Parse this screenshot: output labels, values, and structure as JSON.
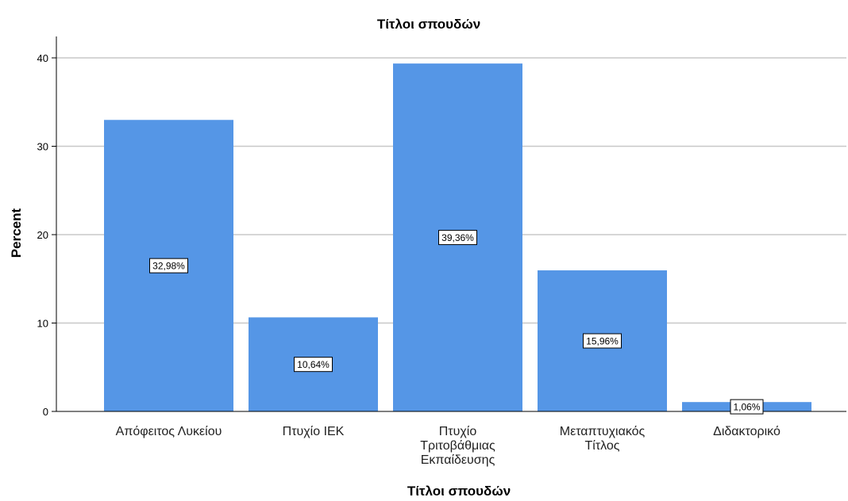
{
  "chart_data": {
    "type": "bar",
    "title": "Τίτλοι σπουδών",
    "xlabel": "Τίτλοι σπουδών",
    "ylabel": "Percent",
    "ylim": [
      0,
      40
    ],
    "yticks": [
      "0",
      "10",
      "20",
      "30",
      "40"
    ],
    "categories": [
      [
        "Απόφειτος Λυκείου"
      ],
      [
        "Πτυχίο ΙΕΚ"
      ],
      [
        "Πτυχίο",
        "Τριτοβάθμιας",
        "Εκπαίδευσης"
      ],
      [
        "Μεταπτυχιακός",
        "Τίτλος"
      ],
      [
        "Διδακτορικό"
      ]
    ],
    "values": [
      32.98,
      10.64,
      39.36,
      15.96,
      1.06
    ],
    "data_labels": [
      "32,98%",
      "10,64%",
      "39,36%",
      "15,96%",
      "1,06%"
    ],
    "grid": true,
    "colors": {
      "bar": "#5596e6",
      "grid": "#c8c8c8",
      "axis": "#000000"
    }
  }
}
